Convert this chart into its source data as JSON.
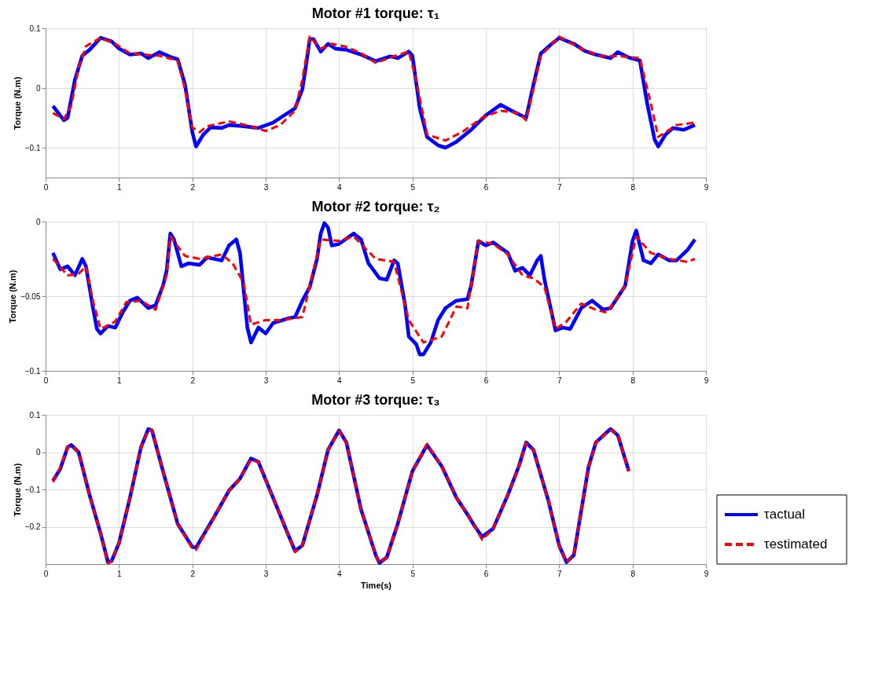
{
  "chart_data": [
    {
      "type": "line",
      "title": "Motor #1 torque: τ₁",
      "ylabel": "Torque (N.m)",
      "xlim": [
        0,
        9
      ],
      "xticks": [
        0,
        1,
        2,
        3,
        4,
        5,
        6,
        7,
        8,
        9
      ],
      "ylim": [
        -0.15,
        0.1
      ],
      "yticks": [
        -0.1,
        0,
        0.1
      ],
      "grid": true,
      "series": [
        {
          "color": "#0000ff",
          "line_style": "solid",
          "x": [
            0.1,
            0.25,
            0.3,
            0.4,
            0.5,
            0.6,
            0.75,
            0.9,
            1.0,
            1.15,
            1.3,
            1.4,
            1.55,
            1.7,
            1.8,
            1.9,
            2.0,
            2.05,
            2.15,
            2.25,
            2.4,
            2.5,
            2.7,
            2.9,
            3.1,
            3.3,
            3.4,
            3.5,
            3.55,
            3.6,
            3.65,
            3.75,
            3.85,
            3.95,
            4.1,
            4.3,
            4.5,
            4.7,
            4.8,
            4.95,
            5.0,
            5.1,
            5.2,
            5.35,
            5.45,
            5.6,
            5.8,
            6.0,
            6.2,
            6.35,
            6.55,
            6.65,
            6.75,
            6.9,
            7.0,
            7.2,
            7.35,
            7.5,
            7.7,
            7.8,
            7.95,
            8.1,
            8.2,
            8.3,
            8.35,
            8.45,
            8.55,
            8.7,
            8.85
          ],
          "values": [
            -0.03,
            -0.054,
            -0.05,
            0.014,
            0.054,
            0.064,
            0.084,
            0.078,
            0.066,
            0.056,
            0.058,
            0.05,
            0.06,
            0.052,
            0.048,
            0.006,
            -0.074,
            -0.098,
            -0.078,
            -0.066,
            -0.067,
            -0.062,
            -0.064,
            -0.067,
            -0.058,
            -0.042,
            -0.034,
            -0.002,
            0.038,
            0.082,
            0.082,
            0.061,
            0.074,
            0.066,
            0.064,
            0.056,
            0.045,
            0.053,
            0.05,
            0.061,
            0.054,
            -0.034,
            -0.082,
            -0.096,
            -0.1,
            -0.09,
            -0.07,
            -0.046,
            -0.028,
            -0.038,
            -0.05,
            0.006,
            0.058,
            0.074,
            0.084,
            0.074,
            0.062,
            0.056,
            0.05,
            0.06,
            0.051,
            0.046,
            -0.026,
            -0.086,
            -0.098,
            -0.078,
            -0.067,
            -0.07,
            -0.062
          ]
        },
        {
          "color": "#ff0000",
          "line_style": "dashed",
          "x": [
            0.1,
            0.25,
            0.35,
            0.45,
            0.55,
            0.75,
            0.95,
            1.15,
            1.35,
            1.55,
            1.8,
            1.9,
            2.0,
            2.1,
            2.2,
            2.5,
            2.8,
            3.0,
            3.2,
            3.4,
            3.5,
            3.6,
            3.75,
            3.9,
            4.1,
            4.3,
            4.5,
            4.75,
            4.95,
            5.05,
            5.2,
            5.45,
            5.7,
            5.95,
            6.2,
            6.45,
            6.55,
            6.65,
            6.75,
            7.0,
            7.3,
            7.55,
            7.85,
            8.1,
            8.25,
            8.35,
            8.6,
            8.85
          ],
          "values": [
            -0.042,
            -0.052,
            -0.03,
            0.034,
            0.07,
            0.084,
            0.074,
            0.058,
            0.056,
            0.054,
            0.046,
            -0.002,
            -0.066,
            -0.074,
            -0.064,
            -0.056,
            -0.064,
            -0.072,
            -0.062,
            -0.038,
            0.014,
            0.086,
            0.066,
            0.074,
            0.069,
            0.058,
            0.042,
            0.053,
            0.061,
            0.014,
            -0.078,
            -0.088,
            -0.072,
            -0.05,
            -0.038,
            -0.042,
            -0.054,
            -0.002,
            0.054,
            0.086,
            0.066,
            0.054,
            0.053,
            0.05,
            -0.026,
            -0.082,
            -0.062,
            -0.058
          ]
        }
      ]
    },
    {
      "type": "line",
      "title": "Motor #2 torque: τ₂",
      "ylabel": "Torque (N.m)",
      "xlim": [
        0,
        9
      ],
      "xticks": [
        0,
        1,
        2,
        3,
        4,
        5,
        6,
        7,
        8,
        9
      ],
      "ylim": [
        -0.1,
        0
      ],
      "yticks": [
        -0.1,
        -0.05,
        0
      ],
      "grid": true,
      "series": [
        {
          "color": "#0000ff",
          "line_style": "solid",
          "x": [
            0.1,
            0.2,
            0.3,
            0.4,
            0.5,
            0.55,
            0.65,
            0.7,
            0.75,
            0.85,
            0.95,
            1.05,
            1.15,
            1.25,
            1.4,
            1.5,
            1.6,
            1.65,
            1.7,
            1.75,
            1.85,
            1.95,
            2.1,
            2.2,
            2.4,
            2.5,
            2.6,
            2.65,
            2.75,
            2.8,
            2.9,
            3.0,
            3.1,
            3.3,
            3.4,
            3.5,
            3.6,
            3.7,
            3.75,
            3.8,
            3.85,
            3.9,
            4.0,
            4.2,
            4.3,
            4.4,
            4.55,
            4.65,
            4.75,
            4.8,
            4.9,
            4.95,
            5.05,
            5.1,
            5.15,
            5.25,
            5.35,
            5.45,
            5.6,
            5.75,
            5.8,
            5.9,
            6.0,
            6.1,
            6.3,
            6.4,
            6.5,
            6.6,
            6.7,
            6.75,
            6.8,
            6.95,
            7.05,
            7.15,
            7.3,
            7.45,
            7.6,
            7.7,
            7.9,
            8.0,
            8.05,
            8.15,
            8.25,
            8.35,
            8.5,
            8.6,
            8.75,
            8.85
          ],
          "values": [
            -0.021,
            -0.032,
            -0.03,
            -0.036,
            -0.025,
            -0.03,
            -0.059,
            -0.072,
            -0.075,
            -0.07,
            -0.071,
            -0.061,
            -0.053,
            -0.051,
            -0.058,
            -0.056,
            -0.043,
            -0.033,
            -0.008,
            -0.012,
            -0.03,
            -0.028,
            -0.029,
            -0.024,
            -0.026,
            -0.016,
            -0.012,
            -0.021,
            -0.071,
            -0.081,
            -0.071,
            -0.075,
            -0.068,
            -0.065,
            -0.064,
            -0.053,
            -0.044,
            -0.025,
            -0.008,
            -0.001,
            -0.004,
            -0.016,
            -0.015,
            -0.008,
            -0.012,
            -0.028,
            -0.038,
            -0.039,
            -0.026,
            -0.028,
            -0.056,
            -0.077,
            -0.082,
            -0.089,
            -0.089,
            -0.081,
            -0.066,
            -0.058,
            -0.053,
            -0.052,
            -0.043,
            -0.013,
            -0.016,
            -0.014,
            -0.021,
            -0.033,
            -0.031,
            -0.036,
            -0.026,
            -0.023,
            -0.039,
            -0.073,
            -0.071,
            -0.072,
            -0.058,
            -0.053,
            -0.059,
            -0.058,
            -0.043,
            -0.013,
            -0.006,
            -0.026,
            -0.028,
            -0.022,
            -0.026,
            -0.026,
            -0.019,
            -0.012
          ]
        },
        {
          "color": "#ff0000",
          "line_style": "dashed",
          "x": [
            0.1,
            0.3,
            0.45,
            0.55,
            0.65,
            0.75,
            0.95,
            1.1,
            1.3,
            1.5,
            1.65,
            1.7,
            1.9,
            2.1,
            2.4,
            2.55,
            2.7,
            2.8,
            3.0,
            3.2,
            3.5,
            3.75,
            4.0,
            4.2,
            4.5,
            4.75,
            4.95,
            5.15,
            5.4,
            5.6,
            5.75,
            5.9,
            6.1,
            6.3,
            6.5,
            6.65,
            6.8,
            6.95,
            7.1,
            7.3,
            7.5,
            7.65,
            7.9,
            8.05,
            8.25,
            8.5,
            8.75,
            8.85
          ],
          "values": [
            -0.025,
            -0.036,
            -0.035,
            -0.03,
            -0.054,
            -0.072,
            -0.067,
            -0.054,
            -0.053,
            -0.059,
            -0.036,
            -0.01,
            -0.023,
            -0.025,
            -0.022,
            -0.028,
            -0.041,
            -0.069,
            -0.066,
            -0.066,
            -0.064,
            -0.012,
            -0.013,
            -0.01,
            -0.025,
            -0.027,
            -0.066,
            -0.081,
            -0.077,
            -0.057,
            -0.058,
            -0.013,
            -0.015,
            -0.022,
            -0.036,
            -0.038,
            -0.044,
            -0.072,
            -0.067,
            -0.055,
            -0.059,
            -0.061,
            -0.043,
            -0.01,
            -0.021,
            -0.025,
            -0.027,
            -0.025
          ]
        }
      ]
    },
    {
      "type": "line",
      "title": "Motor #3 torque: τ₃",
      "xlabel": "Time(s)",
      "ylabel": "Torque (N.m)",
      "xlim": [
        0,
        9
      ],
      "xticks": [
        0,
        1,
        2,
        3,
        4,
        5,
        6,
        7,
        8,
        9
      ],
      "ylim": [
        -0.3,
        0.1
      ],
      "yticks": [
        -0.2,
        -0.1,
        0,
        0.1
      ],
      "grid": true,
      "legend": "bottom right",
      "series": [
        {
          "name": "τactual",
          "color": "#0000ff",
          "line_style": "solid",
          "x": [
            0.1,
            0.2,
            0.3,
            0.35,
            0.45,
            0.6,
            0.75,
            0.85,
            0.9,
            1.0,
            1.15,
            1.3,
            1.4,
            1.45,
            1.6,
            1.8,
            2.0,
            2.05,
            2.3,
            2.5,
            2.65,
            2.8,
            2.9,
            3.1,
            3.3,
            3.4,
            3.5,
            3.7,
            3.85,
            4.0,
            4.1,
            4.3,
            4.5,
            4.55,
            4.65,
            4.8,
            5.0,
            5.2,
            5.4,
            5.6,
            5.75,
            5.85,
            5.95,
            6.1,
            6.3,
            6.45,
            6.55,
            6.65,
            6.85,
            7.0,
            7.1,
            7.2,
            7.4,
            7.5,
            7.7,
            7.8,
            7.95
          ],
          "values": [
            -0.077,
            -0.045,
            0.013,
            0.019,
            0,
            -0.115,
            -0.218,
            -0.295,
            -0.292,
            -0.244,
            -0.122,
            0.013,
            0.062,
            0.058,
            -0.051,
            -0.192,
            -0.254,
            -0.256,
            -0.173,
            -0.103,
            -0.071,
            -0.017,
            -0.026,
            -0.122,
            -0.218,
            -0.265,
            -0.25,
            -0.115,
            0.006,
            0.058,
            0.026,
            -0.154,
            -0.276,
            -0.297,
            -0.282,
            -0.192,
            -0.051,
            0.019,
            -0.038,
            -0.122,
            -0.167,
            -0.199,
            -0.227,
            -0.205,
            -0.115,
            -0.038,
            0.026,
            0.006,
            -0.128,
            -0.25,
            -0.295,
            -0.276,
            -0.04,
            0.026,
            0.062,
            0.045,
            -0.051
          ]
        },
        {
          "name": "τestimated",
          "color": "#ff0000",
          "line_style": "dashed",
          "x": [
            0.1,
            0.2,
            0.3,
            0.35,
            0.45,
            0.6,
            0.75,
            0.85,
            0.9,
            1.0,
            1.15,
            1.3,
            1.4,
            1.45,
            1.6,
            1.8,
            2.0,
            2.05,
            2.3,
            2.5,
            2.65,
            2.8,
            2.9,
            3.1,
            3.3,
            3.4,
            3.5,
            3.7,
            3.85,
            4.0,
            4.1,
            4.3,
            4.5,
            4.55,
            4.65,
            4.8,
            5.0,
            5.2,
            5.4,
            5.6,
            5.75,
            5.85,
            5.95,
            6.1,
            6.3,
            6.45,
            6.55,
            6.65,
            6.85,
            7.0,
            7.1,
            7.2,
            7.4,
            7.5,
            7.7,
            7.8,
            7.95
          ],
          "values": [
            -0.08,
            -0.04,
            0.013,
            0.017,
            0,
            -0.115,
            -0.218,
            -0.298,
            -0.292,
            -0.244,
            -0.122,
            0.013,
            0.06,
            0.058,
            -0.051,
            -0.192,
            -0.258,
            -0.262,
            -0.173,
            -0.103,
            -0.071,
            -0.02,
            -0.026,
            -0.122,
            -0.218,
            -0.268,
            -0.25,
            -0.115,
            0.006,
            0.056,
            0.026,
            -0.154,
            -0.276,
            -0.297,
            -0.282,
            -0.192,
            -0.051,
            0.022,
            -0.038,
            -0.122,
            -0.167,
            -0.199,
            -0.235,
            -0.205,
            -0.115,
            -0.038,
            0.024,
            0.006,
            -0.128,
            -0.25,
            -0.295,
            -0.276,
            -0.04,
            0.026,
            0.06,
            0.045,
            -0.051
          ]
        }
      ]
    }
  ]
}
